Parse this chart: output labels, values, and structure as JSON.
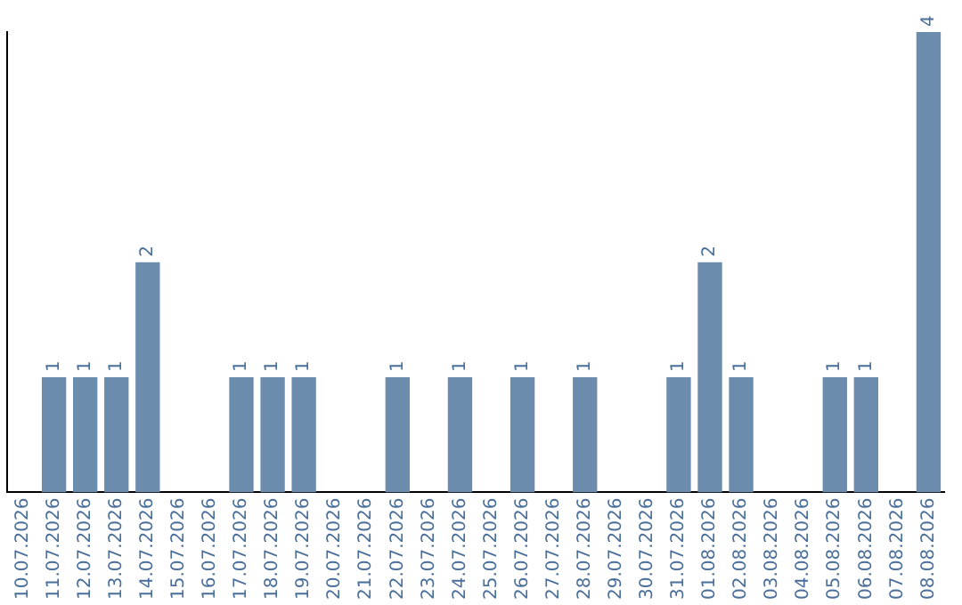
{
  "chart_data": {
    "type": "bar",
    "categories": [
      "10.07.2026",
      "11.07.2026",
      "12.07.2026",
      "13.07.2026",
      "14.07.2026",
      "15.07.2026",
      "16.07.2026",
      "17.07.2026",
      "18.07.2026",
      "19.07.2026",
      "20.07.2026",
      "21.07.2026",
      "22.07.2026",
      "23.07.2026",
      "24.07.2026",
      "25.07.2026",
      "26.07.2026",
      "27.07.2026",
      "28.07.2026",
      "29.07.2026",
      "30.07.2026",
      "31.07.2026",
      "01.08.2026",
      "02.08.2026",
      "03.08.2026",
      "04.08.2026",
      "05.08.2026",
      "06.08.2026",
      "07.08.2026",
      "08.08.2026"
    ],
    "values": [
      0,
      1,
      1,
      1,
      2,
      0,
      0,
      1,
      1,
      1,
      0,
      0,
      1,
      0,
      1,
      0,
      1,
      0,
      1,
      0,
      0,
      1,
      2,
      1,
      0,
      0,
      1,
      1,
      0,
      4
    ],
    "value_labels": [
      null,
      "1",
      "1",
      "1",
      "2",
      null,
      null,
      "1",
      "1",
      "1",
      null,
      null,
      "1",
      null,
      "1",
      null,
      "1",
      null,
      "1",
      null,
      null,
      "1",
      "2",
      "1",
      null,
      null,
      "1",
      "1",
      null,
      "4"
    ],
    "color": "#6b8cad",
    "ylim": [
      0,
      4
    ],
    "tick_labels": "x",
    "grid": false,
    "legend": false
  }
}
